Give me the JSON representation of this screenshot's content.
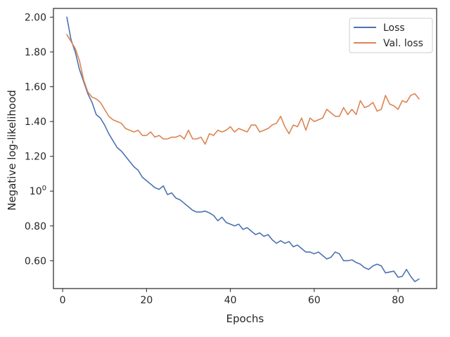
{
  "chart_data": {
    "type": "line",
    "xlabel": "Epochs",
    "ylabel": "Negative log-likelihood",
    "xlim": [
      -2.2,
      89.2
    ],
    "ylim": [
      0.44,
      2.05
    ],
    "x_ticks": [
      0,
      20,
      40,
      60,
      80
    ],
    "y_ticks": [
      {
        "value": 0.6,
        "label": "0.60"
      },
      {
        "value": 0.8,
        "label": "0.80"
      },
      {
        "value": 1.0,
        "label": "10",
        "sup": "0"
      },
      {
        "value": 1.2,
        "label": "1.20"
      },
      {
        "value": 1.4,
        "label": "1.40"
      },
      {
        "value": 1.6,
        "label": "1.60"
      },
      {
        "value": 1.8,
        "label": "1.80"
      },
      {
        "value": 2.0,
        "label": "2.00"
      }
    ],
    "grid": false,
    "legend_position": "top-right",
    "x": [
      1,
      2,
      3,
      4,
      5,
      6,
      7,
      8,
      9,
      10,
      11,
      12,
      13,
      14,
      15,
      16,
      17,
      18,
      19,
      20,
      21,
      22,
      23,
      24,
      25,
      26,
      27,
      28,
      29,
      30,
      31,
      32,
      33,
      34,
      35,
      36,
      37,
      38,
      39,
      40,
      41,
      42,
      43,
      44,
      45,
      46,
      47,
      48,
      49,
      50,
      51,
      52,
      53,
      54,
      55,
      56,
      57,
      58,
      59,
      60,
      61,
      62,
      63,
      64,
      65,
      66,
      67,
      68,
      69,
      70,
      71,
      72,
      73,
      74,
      75,
      76,
      77,
      78,
      79,
      80,
      81,
      82,
      83,
      84,
      85
    ],
    "series": [
      {
        "name": "Loss",
        "color": "#4c72b0",
        "values": [
          2.0,
          1.87,
          1.8,
          1.7,
          1.63,
          1.56,
          1.51,
          1.44,
          1.42,
          1.38,
          1.33,
          1.29,
          1.25,
          1.23,
          1.2,
          1.17,
          1.14,
          1.12,
          1.08,
          1.06,
          1.04,
          1.02,
          1.01,
          1.03,
          0.98,
          0.99,
          0.96,
          0.95,
          0.93,
          0.91,
          0.89,
          0.88,
          0.88,
          0.885,
          0.875,
          0.86,
          0.83,
          0.85,
          0.82,
          0.81,
          0.8,
          0.81,
          0.78,
          0.79,
          0.77,
          0.75,
          0.76,
          0.74,
          0.75,
          0.72,
          0.7,
          0.715,
          0.7,
          0.71,
          0.68,
          0.69,
          0.67,
          0.65,
          0.65,
          0.64,
          0.65,
          0.63,
          0.61,
          0.62,
          0.65,
          0.64,
          0.6,
          0.6,
          0.605,
          0.59,
          0.58,
          0.56,
          0.55,
          0.57,
          0.58,
          0.57,
          0.53,
          0.535,
          0.54,
          0.505,
          0.51,
          0.55,
          0.51,
          0.48,
          0.495
        ]
      },
      {
        "name": "Val. loss",
        "color": "#dd8452",
        "values": [
          1.9,
          1.86,
          1.82,
          1.75,
          1.64,
          1.57,
          1.54,
          1.53,
          1.51,
          1.47,
          1.43,
          1.41,
          1.4,
          1.39,
          1.36,
          1.35,
          1.34,
          1.35,
          1.32,
          1.32,
          1.34,
          1.31,
          1.32,
          1.3,
          1.3,
          1.31,
          1.31,
          1.32,
          1.3,
          1.35,
          1.3,
          1.3,
          1.31,
          1.27,
          1.33,
          1.32,
          1.35,
          1.34,
          1.35,
          1.37,
          1.34,
          1.36,
          1.35,
          1.34,
          1.38,
          1.38,
          1.34,
          1.35,
          1.36,
          1.38,
          1.39,
          1.43,
          1.37,
          1.33,
          1.38,
          1.37,
          1.42,
          1.35,
          1.42,
          1.4,
          1.41,
          1.42,
          1.47,
          1.45,
          1.43,
          1.43,
          1.48,
          1.44,
          1.47,
          1.44,
          1.52,
          1.48,
          1.49,
          1.51,
          1.46,
          1.47,
          1.55,
          1.5,
          1.49,
          1.47,
          1.52,
          1.51,
          1.55,
          1.56,
          1.53
        ]
      }
    ]
  }
}
